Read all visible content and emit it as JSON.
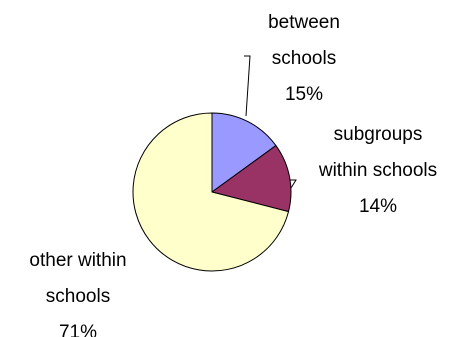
{
  "chart_data": {
    "type": "pie",
    "title": "",
    "start_angle_deg": 0,
    "direction": "clockwise",
    "slices": [
      {
        "label_lines": [
          "between",
          "schools"
        ],
        "percent_label": "15%",
        "value": 15,
        "color": "#9999FF"
      },
      {
        "label_lines": [
          "subgroups",
          "within schools"
        ],
        "percent_label": "14%",
        "value": 14,
        "color": "#993366"
      },
      {
        "label_lines": [
          "other within",
          "schools"
        ],
        "percent_label": "71%",
        "value": 71,
        "color": "#FFFFCC"
      }
    ],
    "edge_color": "#000000"
  }
}
